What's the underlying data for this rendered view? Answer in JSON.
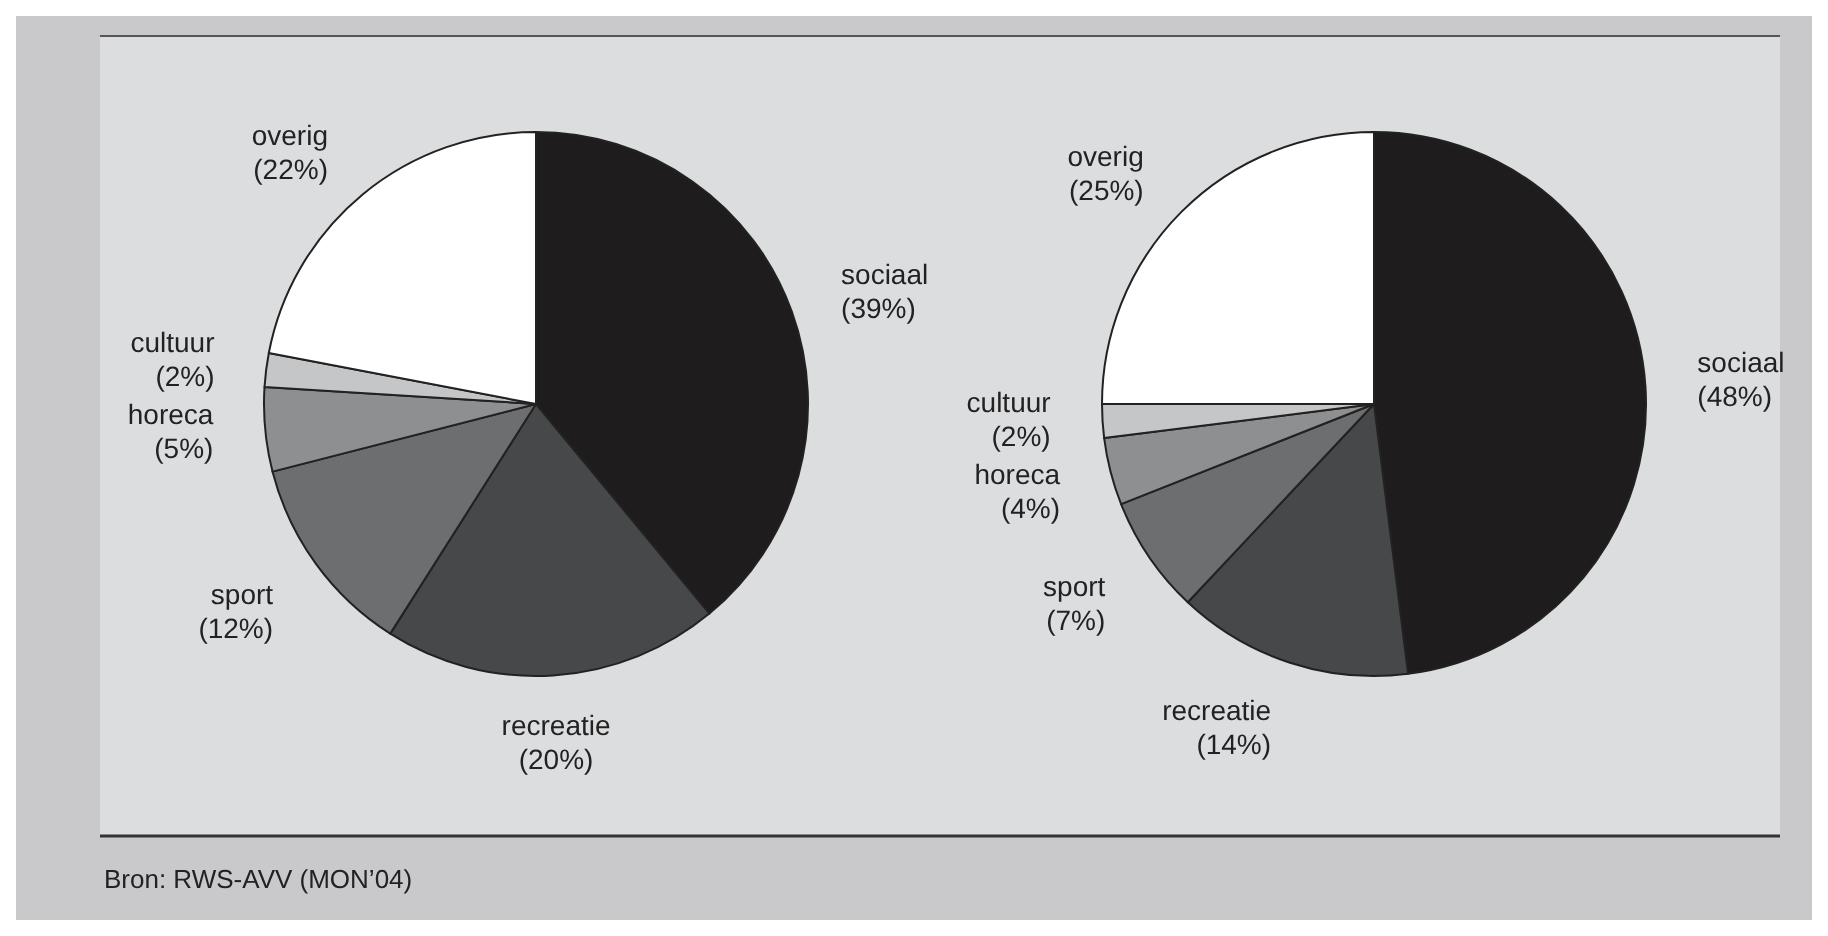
{
  "chart_data": [
    {
      "type": "pie",
      "categories": [
        "sociaal",
        "recreatie",
        "sport",
        "horeca",
        "cultuur",
        "overig"
      ],
      "values": [
        39,
        20,
        12,
        5,
        2,
        22
      ],
      "value_labels": [
        "(39%)",
        "(20%)",
        "(12%)",
        "(5%)",
        "(2%)",
        "(22%)"
      ],
      "colors": [
        "#1e1c1d",
        "#47484a",
        "#6d6e70",
        "#8e8f91",
        "#c5c6c8",
        "#ffffff"
      ],
      "annotations": [
        "Bron: RWS-AVV (MON’04)"
      ]
    },
    {
      "type": "pie",
      "categories": [
        "sociaal",
        "recreatie",
        "sport",
        "horeca",
        "cultuur",
        "overig"
      ],
      "values": [
        48,
        14,
        7,
        4,
        2,
        25
      ],
      "value_labels": [
        "(48%)",
        "(14%)",
        "(7%)",
        "(4%)",
        "(2%)",
        "(25%)"
      ],
      "colors": [
        "#1e1c1d",
        "#47484a",
        "#6d6e70",
        "#8e8f91",
        "#c5c6c8",
        "#ffffff"
      ]
    }
  ]
}
